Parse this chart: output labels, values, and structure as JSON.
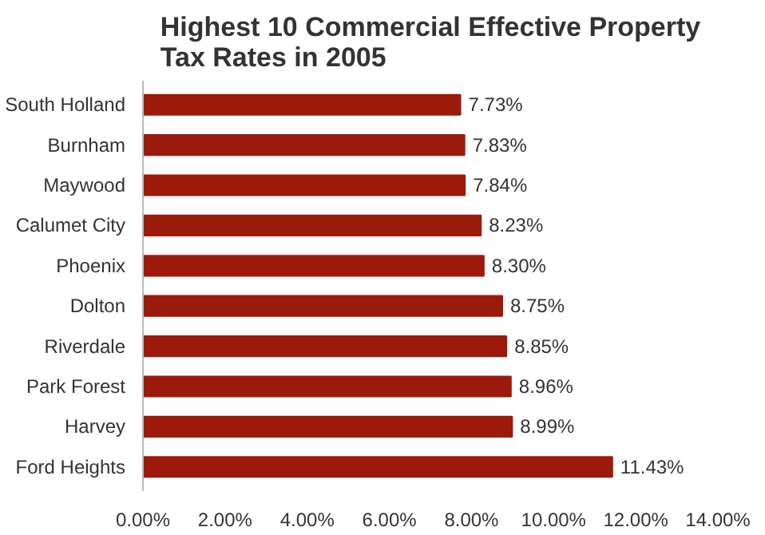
{
  "chart_data": {
    "type": "bar",
    "orientation": "horizontal",
    "title": "Highest 10 Commercial Effective Property\nTax Rates in 2005",
    "categories": [
      "South Holland",
      "Burnham",
      "Maywood",
      "Calumet City",
      "Phoenix",
      "Dolton",
      "Riverdale",
      "Park Forest",
      "Harvey",
      "Ford Heights"
    ],
    "values": [
      7.73,
      7.83,
      7.84,
      8.23,
      8.3,
      8.75,
      8.85,
      8.96,
      8.99,
      11.43
    ],
    "value_labels": [
      "7.73%",
      "7.83%",
      "7.84%",
      "8.23%",
      "8.30%",
      "8.75%",
      "8.85%",
      "8.96%",
      "8.99%",
      "11.43%"
    ],
    "color": "#9c1a0c",
    "xlim": [
      0,
      14
    ],
    "xticks": [
      {
        "value": 0,
        "label": "0.00%"
      },
      {
        "value": 2,
        "label": "2.00%"
      },
      {
        "value": 4,
        "label": "4.00%"
      },
      {
        "value": 6,
        "label": "6.00%"
      },
      {
        "value": 8,
        "label": "8.00%"
      },
      {
        "value": 10,
        "label": "10.00%"
      },
      {
        "value": 12,
        "label": "12.00%"
      },
      {
        "value": 14,
        "label": "14.00%"
      }
    ],
    "grid": false
  }
}
